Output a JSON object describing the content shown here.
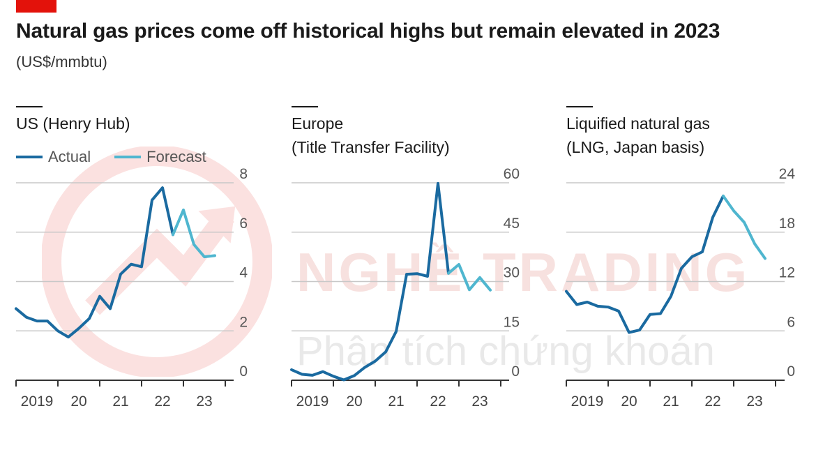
{
  "title": "Natural gas prices come off historical highs but remain elevated in 2023",
  "subtitle": "(US$/mmbtu)",
  "legend": {
    "actual": "Actual",
    "forecast": "Forecast"
  },
  "colors": {
    "actual": "#1a6aa0",
    "forecast": "#4fb6cf",
    "brand_red": "#e3120b"
  },
  "watermark": {
    "brand": "NGHỀ TRADING",
    "tagline": "Phân tích chứng khoán"
  },
  "chart_data": [
    {
      "type": "line",
      "title": "US (Henry Hub)",
      "title_lines": [
        "US (Henry Hub)"
      ],
      "x_ticks": [
        "2019",
        "20",
        "21",
        "22",
        "23"
      ],
      "xlim": [
        2019,
        2024
      ],
      "ylim": [
        0,
        8
      ],
      "y_ticks": [
        "0",
        "2",
        "4",
        "6",
        "8"
      ],
      "y_tick_values": [
        0,
        2,
        4,
        6,
        8
      ],
      "series": [
        {
          "name": "Actual",
          "points": [
            [
              2019.0,
              2.9
            ],
            [
              2019.25,
              2.55
            ],
            [
              2019.5,
              2.4
            ],
            [
              2019.75,
              2.4
            ],
            [
              2020.0,
              2.0
            ],
            [
              2020.25,
              1.75
            ],
            [
              2020.5,
              2.1
            ],
            [
              2020.75,
              2.5
            ],
            [
              2021.0,
              3.4
            ],
            [
              2021.25,
              2.9
            ],
            [
              2021.5,
              4.3
            ],
            [
              2021.75,
              4.7
            ],
            [
              2022.0,
              4.6
            ],
            [
              2022.25,
              7.3
            ],
            [
              2022.5,
              7.8
            ],
            [
              2022.75,
              5.9
            ]
          ]
        },
        {
          "name": "Forecast",
          "points": [
            [
              2022.75,
              5.9
            ],
            [
              2023.0,
              6.9
            ],
            [
              2023.25,
              5.5
            ],
            [
              2023.5,
              5.0
            ],
            [
              2023.75,
              5.05
            ]
          ]
        }
      ]
    },
    {
      "type": "line",
      "title": "Europe (Title Transfer Facility)",
      "title_lines": [
        "Europe",
        "(Title Transfer Facility)"
      ],
      "x_ticks": [
        "2019",
        "20",
        "21",
        "22",
        "23"
      ],
      "xlim": [
        2019,
        2024
      ],
      "ylim": [
        0,
        60
      ],
      "y_ticks": [
        "0",
        "15",
        "30",
        "45",
        "60"
      ],
      "y_tick_values": [
        0,
        15,
        30,
        45,
        60
      ],
      "series": [
        {
          "name": "Actual",
          "points": [
            [
              2019.0,
              3.2
            ],
            [
              2019.25,
              1.8
            ],
            [
              2019.5,
              1.5
            ],
            [
              2019.75,
              2.6
            ],
            [
              2020.0,
              1.2
            ],
            [
              2020.25,
              0.1
            ],
            [
              2020.5,
              1.4
            ],
            [
              2020.75,
              3.9
            ],
            [
              2021.0,
              5.8
            ],
            [
              2021.25,
              8.6
            ],
            [
              2021.5,
              14.8
            ],
            [
              2021.75,
              32.2
            ],
            [
              2022.0,
              32.4
            ],
            [
              2022.25,
              31.6
            ],
            [
              2022.5,
              59.8
            ],
            [
              2022.75,
              32.5
            ]
          ]
        },
        {
          "name": "Forecast",
          "points": [
            [
              2022.75,
              32.5
            ],
            [
              2023.0,
              35.2
            ],
            [
              2023.25,
              27.5
            ],
            [
              2023.5,
              31.2
            ],
            [
              2023.75,
              27.4
            ]
          ]
        }
      ]
    },
    {
      "type": "line",
      "title": "Liquified natural gas (LNG, Japan basis)",
      "title_lines": [
        "Liquified natural gas",
        "(LNG, Japan basis)"
      ],
      "x_ticks": [
        "2019",
        "20",
        "21",
        "22",
        "23"
      ],
      "xlim": [
        2019,
        2024
      ],
      "ylim": [
        0,
        24
      ],
      "y_ticks": [
        "0",
        "6",
        "12",
        "18",
        "24"
      ],
      "y_tick_values": [
        0,
        6,
        12,
        18,
        24
      ],
      "series": [
        {
          "name": "Actual",
          "points": [
            [
              2019.0,
              10.8
            ],
            [
              2019.25,
              9.2
            ],
            [
              2019.5,
              9.5
            ],
            [
              2019.75,
              9.0
            ],
            [
              2020.0,
              8.9
            ],
            [
              2020.25,
              8.4
            ],
            [
              2020.5,
              5.8
            ],
            [
              2020.75,
              6.1
            ],
            [
              2021.0,
              8.0
            ],
            [
              2021.25,
              8.1
            ],
            [
              2021.5,
              10.2
            ],
            [
              2021.75,
              13.6
            ],
            [
              2022.0,
              15.0
            ],
            [
              2022.25,
              15.6
            ],
            [
              2022.5,
              19.8
            ],
            [
              2022.75,
              22.4
            ]
          ]
        },
        {
          "name": "Forecast",
          "points": [
            [
              2022.75,
              22.4
            ],
            [
              2023.0,
              20.6
            ],
            [
              2023.25,
              19.2
            ],
            [
              2023.5,
              16.6
            ],
            [
              2023.75,
              14.8
            ]
          ]
        }
      ]
    }
  ]
}
